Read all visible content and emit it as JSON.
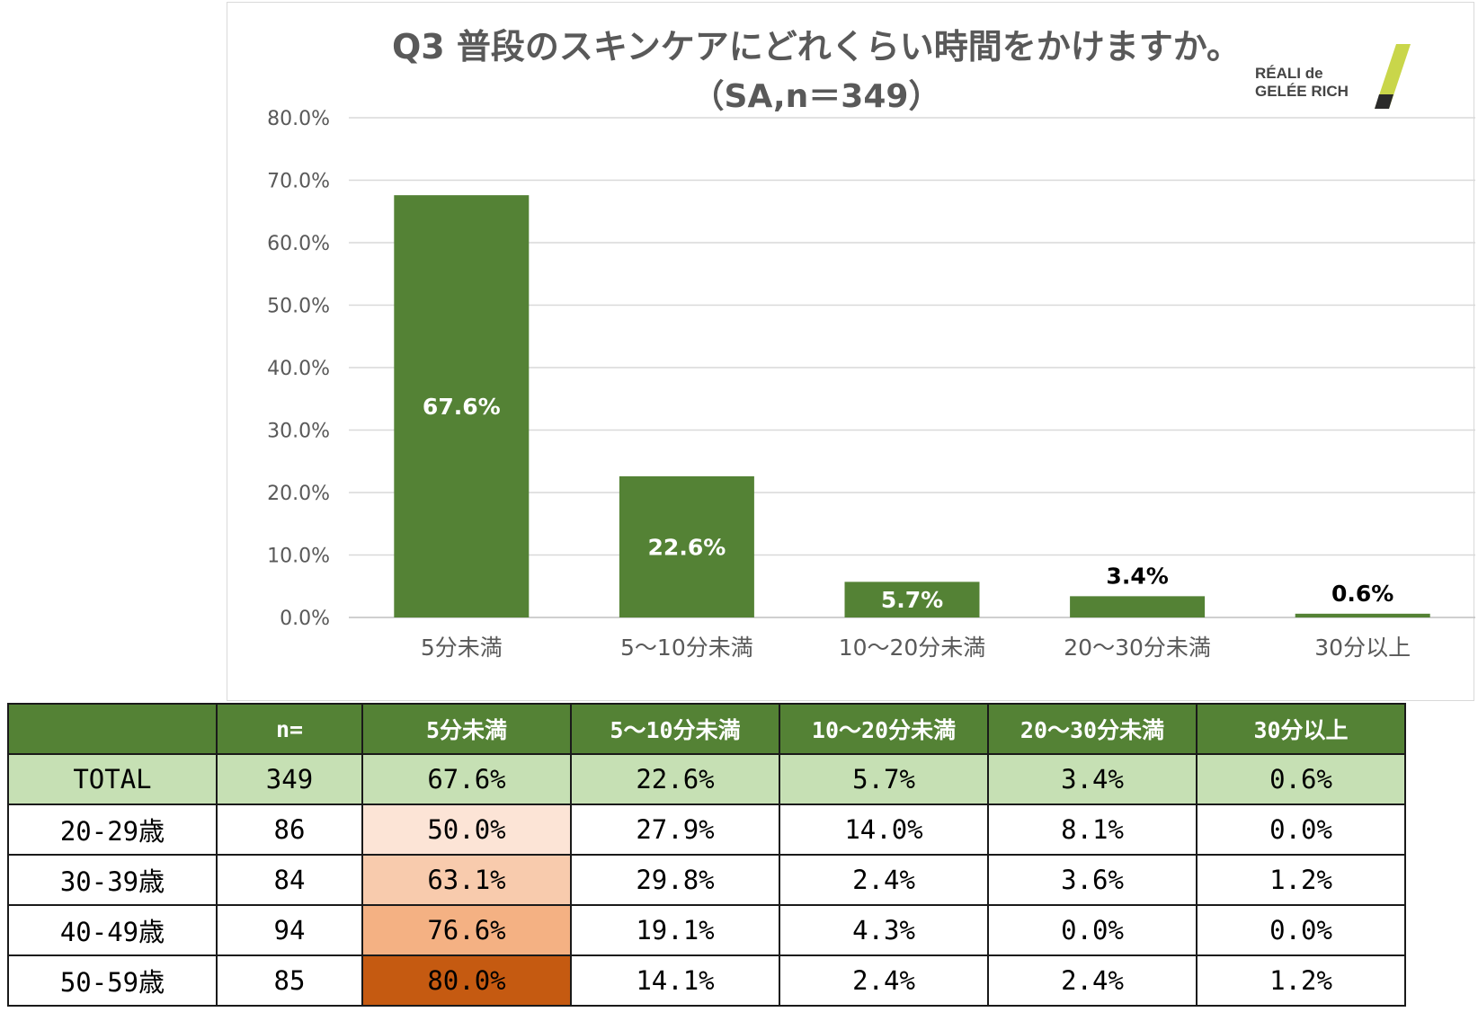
{
  "chart_data": {
    "type": "bar",
    "title": "Q3 普段のスキンケアにどれくらい時間をかけますか。",
    "subtitle": "（SA,n＝349）",
    "categories": [
      "5分未満",
      "5～10分未満",
      "10～20分未満",
      "20～30分未満",
      "30分以上"
    ],
    "values": [
      67.6,
      22.6,
      5.7,
      3.4,
      0.6
    ],
    "data_labels": [
      "67.6%",
      "22.6%",
      "5.7%",
      "3.4%",
      "0.6%"
    ],
    "yticks": [
      "0.0%",
      "10.0%",
      "20.0%",
      "30.0%",
      "40.0%",
      "50.0%",
      "60.0%",
      "70.0%",
      "80.0%"
    ],
    "ylim": [
      0,
      80
    ],
    "grid": true,
    "bar_color": "#548235",
    "logo": {
      "line1": "RÉALI de",
      "line2": "GELÉE RICH"
    }
  },
  "table": {
    "headers": [
      "",
      "n=",
      "5分未満",
      "5～10分未満",
      "10～20分未満",
      "20～30分未満",
      "30分以上"
    ],
    "rows": [
      {
        "label": "TOTAL",
        "n": "349",
        "cells": [
          "67.6%",
          "22.6%",
          "5.7%",
          "3.4%",
          "0.6%"
        ]
      },
      {
        "label": "20-29歳",
        "n": "86",
        "cells": [
          "50.0%",
          "27.9%",
          "14.0%",
          "8.1%",
          "0.0%"
        ]
      },
      {
        "label": "30-39歳",
        "n": "84",
        "cells": [
          "63.1%",
          "29.8%",
          "2.4%",
          "3.6%",
          "1.2%"
        ]
      },
      {
        "label": "40-49歳",
        "n": "94",
        "cells": [
          "76.6%",
          "19.1%",
          "4.3%",
          "0.0%",
          "0.0%"
        ]
      },
      {
        "label": "50-59歳",
        "n": "85",
        "cells": [
          "80.0%",
          "14.1%",
          "2.4%",
          "2.4%",
          "1.2%"
        ]
      }
    ],
    "heat_colors": [
      "#fce4d6",
      "#f8cbad",
      "#f4b183",
      "#c55a11"
    ],
    "header_color": "#548235",
    "total_row_color": "#c6e0b4"
  }
}
